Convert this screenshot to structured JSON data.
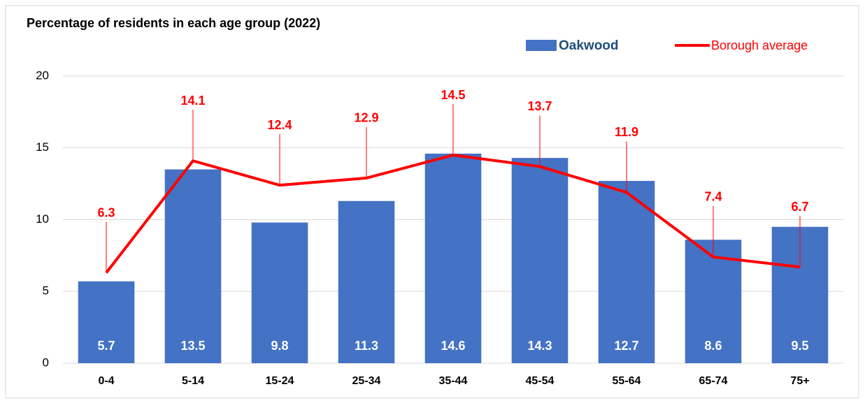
{
  "chart_data": {
    "type": "bar",
    "title": "Percentage of residents in each age group (2022)",
    "categories": [
      "0-4",
      "5-14",
      "15-24",
      "25-34",
      "35-44",
      "45-54",
      "55-64",
      "65-74",
      "75+"
    ],
    "series": [
      {
        "name": "Oakwood",
        "type": "bar",
        "color": "#4472c4",
        "values": [
          5.7,
          13.5,
          9.8,
          11.3,
          14.6,
          14.3,
          12.7,
          8.6,
          9.5
        ]
      },
      {
        "name": "Borough average",
        "type": "line",
        "color": "#ff0000",
        "values": [
          6.3,
          14.1,
          12.4,
          12.9,
          14.5,
          13.7,
          11.9,
          7.4,
          6.7
        ]
      }
    ],
    "ylim": [
      0,
      20
    ],
    "yticks": [
      0,
      5,
      10,
      15,
      20
    ],
    "grid": true,
    "legend": "top-right"
  }
}
